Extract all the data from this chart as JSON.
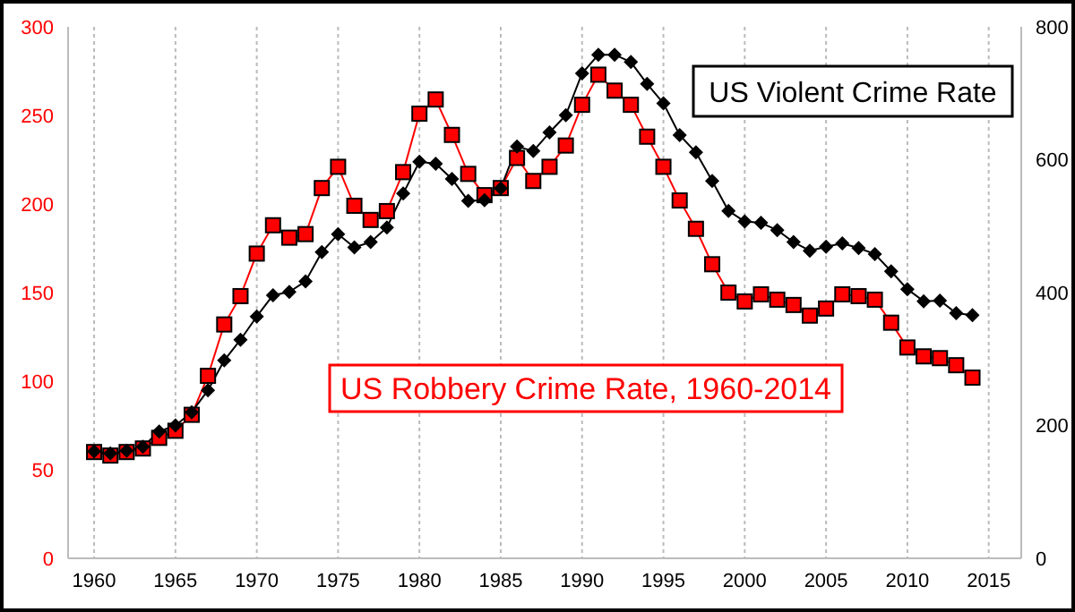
{
  "chart_data": {
    "type": "line",
    "x": [
      1960,
      1961,
      1962,
      1963,
      1964,
      1965,
      1966,
      1967,
      1968,
      1969,
      1970,
      1971,
      1972,
      1973,
      1974,
      1975,
      1976,
      1977,
      1978,
      1979,
      1980,
      1981,
      1982,
      1983,
      1984,
      1985,
      1986,
      1987,
      1988,
      1989,
      1990,
      1991,
      1992,
      1993,
      1994,
      1995,
      1996,
      1997,
      1998,
      1999,
      2000,
      2001,
      2002,
      2003,
      2004,
      2005,
      2006,
      2007,
      2008,
      2009,
      2010,
      2011,
      2012,
      2013,
      2014
    ],
    "series": [
      {
        "name": "US Robbery Crime Rate, 1960-2014",
        "color": "#ff0000",
        "marker": "square",
        "values": [
          60,
          58,
          60,
          62,
          68,
          72,
          81,
          103,
          132,
          148,
          172,
          188,
          181,
          183,
          209,
          221,
          199,
          191,
          196,
          218,
          251,
          259,
          239,
          217,
          205,
          209,
          226,
          213,
          221,
          233,
          256,
          273,
          264,
          256,
          238,
          221,
          202,
          186,
          166,
          150,
          145,
          149,
          146,
          143,
          137,
          141,
          149,
          148,
          146,
          133,
          119,
          114,
          113,
          109,
          102
        ]
      },
      {
        "name": "US Violent Crime Rate",
        "color": "#000000",
        "marker": "diamond",
        "axis": "y2",
        "values": [
          161,
          158,
          162,
          168,
          191,
          200,
          220,
          253,
          298,
          329,
          364,
          396,
          401,
          417,
          461,
          488,
          468,
          476,
          498,
          549,
          597,
          594,
          571,
          538,
          539,
          557,
          620,
          613,
          641,
          667,
          730,
          758,
          758,
          747,
          714,
          685,
          637,
          611,
          568,
          523,
          507,
          505,
          494,
          476,
          463,
          469,
          474,
          467,
          458,
          432,
          405,
          387,
          388,
          369,
          366
        ]
      }
    ],
    "xlim": [
      1958.4,
      2017
    ],
    "xticks": [
      1960,
      1965,
      1970,
      1975,
      1980,
      1985,
      1990,
      1995,
      2000,
      2005,
      2010,
      2015
    ],
    "ylim": [
      0,
      300
    ],
    "yticks": [
      0,
      50,
      100,
      150,
      200,
      250,
      300
    ],
    "y2lim": [
      0,
      800
    ],
    "y2ticks": [
      0,
      200,
      400,
      600,
      800
    ],
    "grid": "x",
    "line_style": "solid"
  }
}
